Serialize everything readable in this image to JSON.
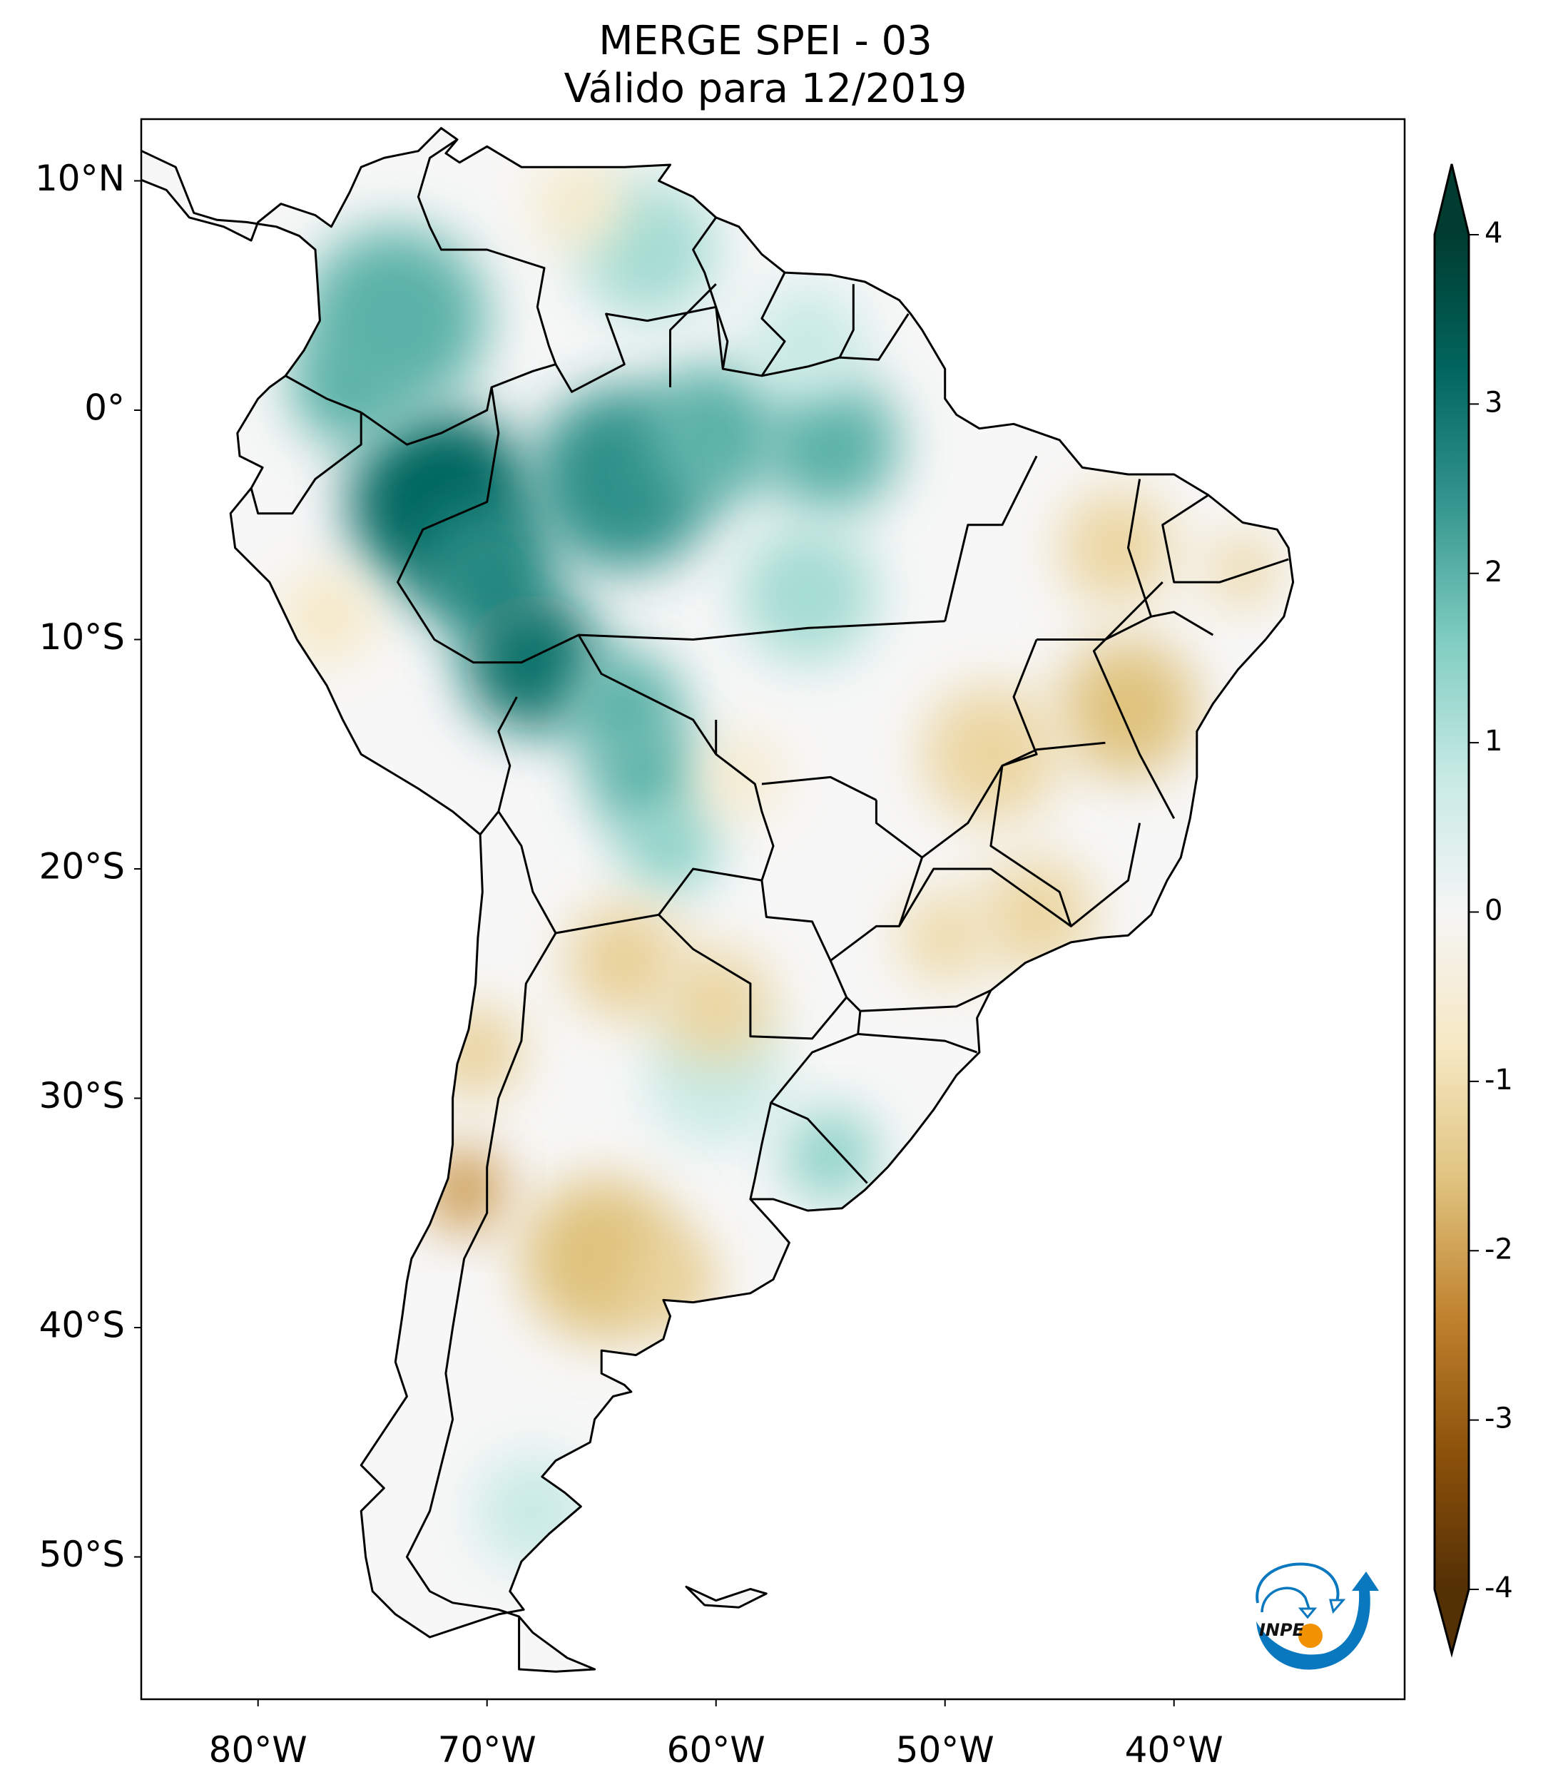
{
  "title": {
    "line1": "MERGE   SPEI - 03",
    "line2": "Válido para 12/2019"
  },
  "map": {
    "projection": "PlateCarree",
    "extent_lon": [
      -85,
      -30
    ],
    "extent_lat": [
      -56,
      12.5
    ],
    "lat_ticks": [
      {
        "value": 10,
        "label": "10°N"
      },
      {
        "value": 0,
        "label": "0°"
      },
      {
        "value": -10,
        "label": "10°S"
      },
      {
        "value": -20,
        "label": "20°S"
      },
      {
        "value": -30,
        "label": "30°S"
      },
      {
        "value": -40,
        "label": "40°S"
      },
      {
        "value": -50,
        "label": "50°S"
      }
    ],
    "lon_ticks": [
      {
        "value": -80,
        "label": "80°W"
      },
      {
        "value": -70,
        "label": "70°W"
      },
      {
        "value": -60,
        "label": "60°W"
      },
      {
        "value": -50,
        "label": "50°W"
      },
      {
        "value": -40,
        "label": "40°W"
      }
    ]
  },
  "colorbar": {
    "colormap": "BrBG",
    "range": [
      -4,
      4
    ],
    "extend": "both",
    "colors": [
      "#543005",
      "#8c510a",
      "#bf812d",
      "#dfc27d",
      "#f6e8c3",
      "#f5f5f5",
      "#c7eae5",
      "#80cdc1",
      "#35978f",
      "#01665e",
      "#003c30"
    ],
    "ticks": [
      {
        "value": 4,
        "label": "4"
      },
      {
        "value": 3,
        "label": "3"
      },
      {
        "value": 2,
        "label": "2"
      },
      {
        "value": 1,
        "label": "1"
      },
      {
        "value": 0,
        "label": "0"
      },
      {
        "value": -1,
        "label": "-1"
      },
      {
        "value": -2,
        "label": "-2"
      },
      {
        "value": -3,
        "label": "-3"
      },
      {
        "value": -4,
        "label": "-4"
      }
    ]
  },
  "logo": {
    "text": "INPE",
    "blue": "#0a78bf",
    "orange": "#f39200"
  }
}
